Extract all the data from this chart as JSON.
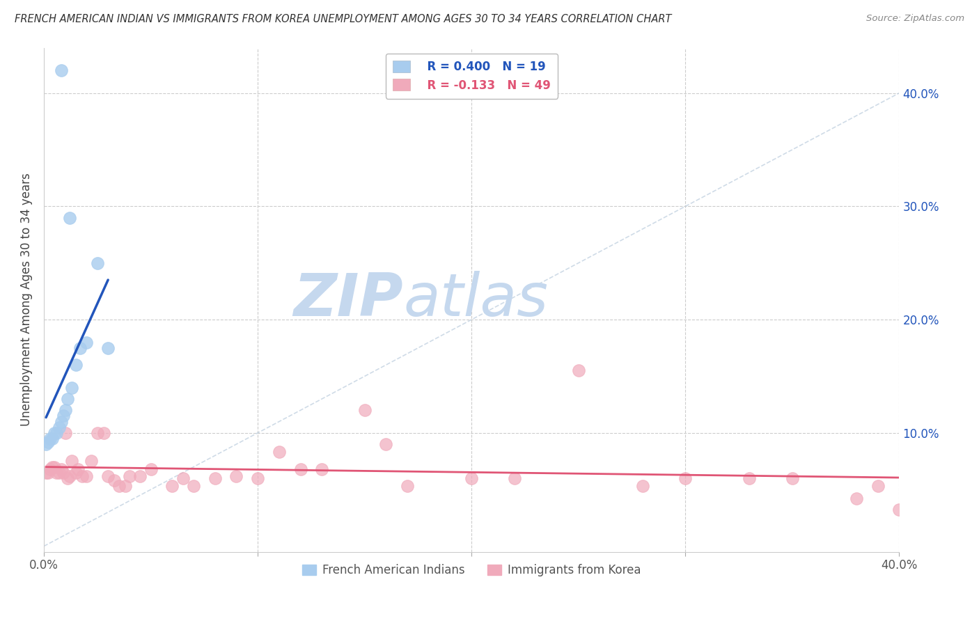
{
  "title": "FRENCH AMERICAN INDIAN VS IMMIGRANTS FROM KOREA UNEMPLOYMENT AMONG AGES 30 TO 34 YEARS CORRELATION CHART",
  "source": "Source: ZipAtlas.com",
  "ylabel": "Unemployment Among Ages 30 to 34 years",
  "xlim": [
    0,
    0.4
  ],
  "ylim": [
    -0.005,
    0.44
  ],
  "yticks": [
    0.0,
    0.1,
    0.2,
    0.3,
    0.4
  ],
  "ytick_labels": [
    "",
    "10.0%",
    "20.0%",
    "30.0%",
    "40.0%"
  ],
  "xticks": [
    0.0,
    0.1,
    0.2,
    0.3,
    0.4
  ],
  "xtick_labels": [
    "0.0%",
    "",
    "",
    "",
    "40.0%"
  ],
  "legend_blue_r": "R = 0.400",
  "legend_blue_n": "N = 19",
  "legend_pink_r": "R = -0.133",
  "legend_pink_n": "N = 49",
  "label_blue": "French American Indians",
  "label_pink": "Immigrants from Korea",
  "blue_color": "#A8CCEE",
  "pink_color": "#F0AABB",
  "blue_line_color": "#2255BB",
  "pink_line_color": "#E05575",
  "watermark_zip": "ZIP",
  "watermark_atlas": "atlas",
  "watermark_color_zip": "#C5D8EE",
  "watermark_color_atlas": "#C5D8EE",
  "grid_color": "#CCCCCC",
  "background_color": "#FFFFFF",
  "blue_x": [
    0.001,
    0.002,
    0.003,
    0.004,
    0.005,
    0.006,
    0.007,
    0.008,
    0.009,
    0.01,
    0.011,
    0.013,
    0.015,
    0.017,
    0.02,
    0.025,
    0.03,
    0.008,
    0.012
  ],
  "blue_y": [
    0.09,
    0.092,
    0.095,
    0.095,
    0.1,
    0.1,
    0.105,
    0.11,
    0.115,
    0.12,
    0.13,
    0.14,
    0.16,
    0.175,
    0.18,
    0.25,
    0.175,
    0.42,
    0.29
  ],
  "pink_x": [
    0.001,
    0.002,
    0.003,
    0.004,
    0.005,
    0.006,
    0.007,
    0.008,
    0.009,
    0.01,
    0.011,
    0.012,
    0.013,
    0.015,
    0.016,
    0.018,
    0.02,
    0.022,
    0.025,
    0.028,
    0.03,
    0.033,
    0.035,
    0.038,
    0.04,
    0.045,
    0.05,
    0.06,
    0.065,
    0.07,
    0.08,
    0.09,
    0.1,
    0.11,
    0.13,
    0.15,
    0.17,
    0.2,
    0.22,
    0.25,
    0.28,
    0.3,
    0.33,
    0.35,
    0.38,
    0.39,
    0.4,
    0.12,
    0.16
  ],
  "pink_y": [
    0.065,
    0.065,
    0.068,
    0.07,
    0.07,
    0.065,
    0.065,
    0.068,
    0.065,
    0.1,
    0.06,
    0.062,
    0.075,
    0.065,
    0.068,
    0.062,
    0.062,
    0.075,
    0.1,
    0.1,
    0.062,
    0.058,
    0.053,
    0.053,
    0.062,
    0.062,
    0.068,
    0.053,
    0.06,
    0.053,
    0.06,
    0.062,
    0.06,
    0.083,
    0.068,
    0.12,
    0.053,
    0.06,
    0.06,
    0.155,
    0.053,
    0.06,
    0.06,
    0.06,
    0.042,
    0.053,
    0.032,
    0.068,
    0.09
  ]
}
